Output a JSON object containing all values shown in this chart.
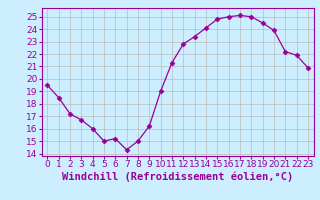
{
  "x": [
    0,
    1,
    2,
    3,
    4,
    5,
    6,
    7,
    8,
    9,
    10,
    11,
    12,
    13,
    14,
    15,
    16,
    17,
    18,
    19,
    20,
    21,
    22,
    23
  ],
  "y": [
    19.5,
    18.5,
    17.2,
    16.7,
    16.0,
    15.0,
    15.2,
    14.3,
    15.0,
    16.2,
    19.0,
    21.3,
    22.8,
    23.4,
    24.1,
    24.8,
    25.0,
    25.1,
    25.0,
    24.5,
    23.9,
    22.2,
    21.9,
    20.9
  ],
  "xlim": [
    -0.5,
    23.5
  ],
  "ylim": [
    13.8,
    25.7
  ],
  "yticks": [
    14,
    15,
    16,
    17,
    18,
    19,
    20,
    21,
    22,
    23,
    24,
    25
  ],
  "xticks": [
    0,
    1,
    2,
    3,
    4,
    5,
    6,
    7,
    8,
    9,
    10,
    11,
    12,
    13,
    14,
    15,
    16,
    17,
    18,
    19,
    20,
    21,
    22,
    23
  ],
  "xlabel": "Windchill (Refroidissement éolien,°C)",
  "line_color": "#990099",
  "marker": "D",
  "marker_size": 2.5,
  "bg_color": "#cceeff",
  "grid_color": "#bbbbbb",
  "font_color": "#990099",
  "tick_label_size": 6.5,
  "xlabel_size": 7.5
}
